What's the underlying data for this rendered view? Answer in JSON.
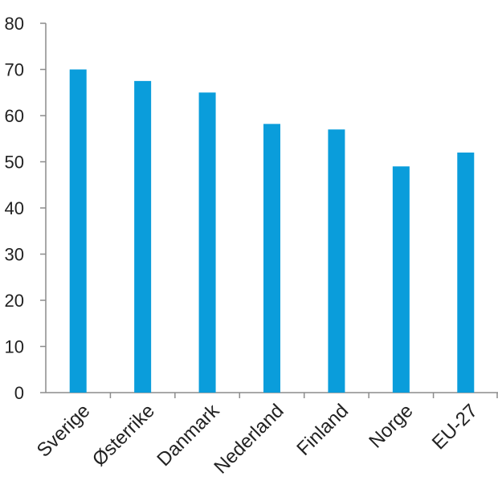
{
  "chart_data": {
    "type": "bar",
    "categories": [
      "Sverige",
      "Østerrike",
      "Danmark",
      "Nederland",
      "Finland",
      "Norge",
      "EU-27"
    ],
    "values": [
      70,
      67.5,
      65,
      58.2,
      57,
      49,
      52
    ],
    "title": "",
    "xlabel": "",
    "ylabel": "",
    "ylim": [
      0,
      80
    ],
    "yticks": [
      "0",
      "10",
      "20",
      "30",
      "40",
      "50",
      "60",
      "70",
      "80"
    ],
    "grid": false,
    "legend": "none",
    "bar_color": "#0a9ddb",
    "axis_color": "#8c8c8c"
  }
}
